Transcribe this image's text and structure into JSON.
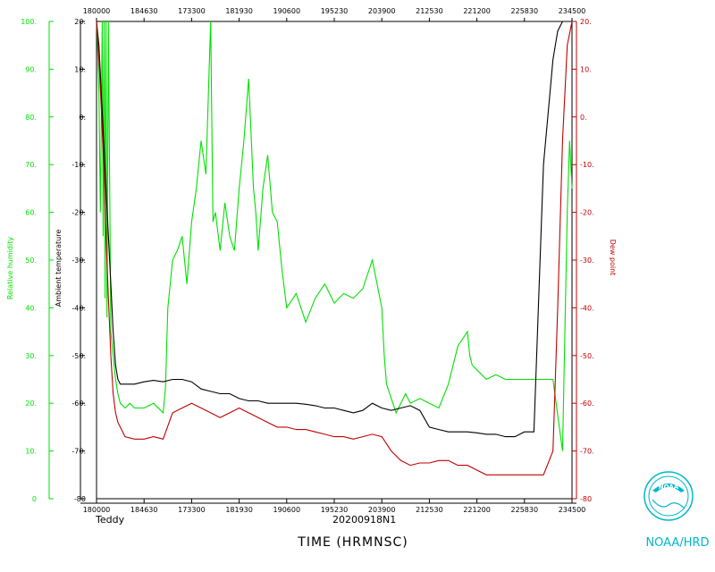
{
  "colors": {
    "rh": "#00e000",
    "temp": "#000000",
    "dew": "#c00000",
    "noaa": "#00b8c8"
  },
  "labels": {
    "storm": "Teddy",
    "flight": "20200918N1",
    "xtitle": "TIME (HRMNSC)",
    "noaa_hrd": "NOAA/HRD",
    "logo_text": "NOAA"
  },
  "chart_data": {
    "type": "line",
    "x_tick_labels": [
      "180000",
      "184630",
      "173300",
      "181930",
      "190600",
      "195230",
      "203900",
      "212530",
      "221200",
      "225830",
      "234500"
    ],
    "axes": {
      "rh": {
        "label": "Relative humidity",
        "ylim": [
          0,
          100
        ],
        "ticks": [
          "0",
          "10.",
          "20.",
          "30.",
          "40.",
          "50.",
          "60.",
          "70.",
          "80.",
          "90.",
          "100."
        ]
      },
      "temp": {
        "label": "Ambient temperature",
        "ylim": [
          -80,
          20
        ],
        "ticks": [
          "-80",
          "-70.",
          "-60.",
          "-50.",
          "-40.",
          "-30.",
          "-20.",
          "-10.",
          "0.",
          "10.",
          "20."
        ]
      },
      "dew": {
        "label": "Dew point",
        "ylim": [
          -80,
          20
        ],
        "ticks": [
          "-80",
          "-70.",
          "-60.",
          "-50.",
          "-40.",
          "-30.",
          "-20.",
          "-10.",
          "0.",
          "10.",
          "20."
        ]
      }
    },
    "x_range": [
      0,
      10
    ],
    "series": [
      {
        "name": "Relative humidity",
        "axis": "rh",
        "color": "#00e000",
        "x": [
          0,
          0.02,
          0.05,
          0.08,
          0.1,
          0.12,
          0.14,
          0.16,
          0.18,
          0.2,
          0.22,
          0.25,
          0.3,
          0.35,
          0.4,
          0.45,
          0.5,
          0.6,
          0.7,
          0.8,
          1.0,
          1.2,
          1.4,
          1.45,
          1.5,
          1.6,
          1.7,
          1.8,
          1.9,
          2.0,
          2.1,
          2.2,
          2.3,
          2.4,
          2.45,
          2.5,
          2.6,
          2.7,
          2.8,
          2.9,
          3.0,
          3.1,
          3.2,
          3.3,
          3.35,
          3.4,
          3.5,
          3.6,
          3.7,
          3.8,
          3.9,
          4.0,
          4.2,
          4.4,
          4.6,
          4.8,
          5.0,
          5.2,
          5.4,
          5.6,
          5.8,
          6.0,
          6.05,
          6.1,
          6.2,
          6.3,
          6.4,
          6.5,
          6.6,
          6.8,
          7.0,
          7.2,
          7.4,
          7.6,
          7.8,
          7.85,
          7.9,
          8.0,
          8.2,
          8.4,
          8.6,
          8.8,
          9.0,
          9.2,
          9.4,
          9.6,
          9.8,
          9.9,
          9.95,
          10.0
        ],
        "y": [
          100,
          95,
          85,
          60,
          78,
          100,
          55,
          100,
          42,
          100,
          38,
          100,
          35,
          30,
          25,
          22,
          20,
          19,
          20,
          19,
          19,
          20,
          18,
          23,
          40,
          50,
          52,
          55,
          45,
          58,
          65,
          75,
          68,
          100,
          58,
          60,
          52,
          62,
          55,
          52,
          65,
          75,
          88,
          65,
          60,
          52,
          65,
          72,
          60,
          58,
          48,
          40,
          43,
          37,
          42,
          45,
          41,
          43,
          42,
          44,
          50,
          40,
          30,
          24,
          21,
          18,
          20,
          22,
          20,
          21,
          20,
          19,
          24,
          32,
          35,
          30,
          28,
          27,
          25,
          26,
          25,
          25,
          25,
          25,
          25,
          25,
          10,
          60,
          75,
          65
        ]
      },
      {
        "name": "Ambient temperature",
        "axis": "temp",
        "color": "#000000",
        "x": [
          0,
          0.05,
          0.1,
          0.15,
          0.2,
          0.25,
          0.3,
          0.35,
          0.4,
          0.45,
          0.5,
          0.6,
          0.8,
          1.0,
          1.2,
          1.4,
          1.6,
          1.8,
          2.0,
          2.2,
          2.4,
          2.6,
          2.8,
          3.0,
          3.2,
          3.4,
          3.6,
          3.8,
          4.0,
          4.2,
          4.4,
          4.6,
          4.8,
          5.0,
          5.2,
          5.4,
          5.6,
          5.8,
          6.0,
          6.2,
          6.4,
          6.6,
          6.8,
          7.0,
          7.2,
          7.4,
          7.6,
          7.8,
          8.0,
          8.2,
          8.4,
          8.6,
          8.8,
          9.0,
          9.2,
          9.4,
          9.6,
          9.7,
          9.8,
          9.9,
          10.0
        ],
        "y": [
          20,
          15,
          5,
          -5,
          -15,
          -25,
          -35,
          -45,
          -52,
          -55,
          -56,
          -56,
          -56,
          -55.5,
          -55.2,
          -55.5,
          -55,
          -55,
          -55.5,
          -57,
          -57.5,
          -58,
          -58,
          -59,
          -59.5,
          -59.5,
          -60,
          -60,
          -60,
          -60,
          -60.2,
          -60.5,
          -61,
          -61,
          -61.5,
          -62,
          -61.5,
          -60,
          -61,
          -61.5,
          -61,
          -60.5,
          -61.5,
          -65,
          -65.5,
          -66,
          -66,
          -66,
          -66.2,
          -66.5,
          -66.5,
          -67,
          -67,
          -66,
          -66,
          -10,
          12,
          18,
          20,
          20,
          20
        ]
      },
      {
        "name": "Dew point",
        "axis": "dew",
        "color": "#c00000",
        "x": [
          0,
          0.05,
          0.1,
          0.15,
          0.2,
          0.25,
          0.3,
          0.35,
          0.4,
          0.45,
          0.5,
          0.6,
          0.8,
          1.0,
          1.2,
          1.4,
          1.6,
          1.8,
          2.0,
          2.2,
          2.4,
          2.6,
          2.8,
          3.0,
          3.2,
          3.4,
          3.6,
          3.8,
          4.0,
          4.2,
          4.4,
          4.6,
          4.8,
          5.0,
          5.2,
          5.4,
          5.6,
          5.8,
          6.0,
          6.2,
          6.4,
          6.6,
          6.8,
          7.0,
          7.2,
          7.4,
          7.6,
          7.8,
          8.0,
          8.2,
          8.4,
          8.6,
          8.8,
          9.0,
          9.2,
          9.4,
          9.6,
          9.7,
          9.8,
          9.9,
          10.0
        ],
        "y": [
          20,
          12,
          2,
          -10,
          -25,
          -38,
          -50,
          -58,
          -62,
          -64,
          -65,
          -67,
          -67.5,
          -67.5,
          -67,
          -67.5,
          -62,
          -61,
          -60,
          -61,
          -62,
          -63,
          -62,
          -61,
          -62,
          -63,
          -64,
          -65,
          -65,
          -65.5,
          -65.5,
          -66,
          -66.5,
          -67,
          -67,
          -67.5,
          -67,
          -66.5,
          -67,
          -70,
          -72,
          -73,
          -72.5,
          -72.5,
          -72,
          -72,
          -73,
          -73,
          -74,
          -75,
          -75,
          -75,
          -75,
          -75,
          -75,
          -75,
          -70,
          -40,
          -5,
          15,
          20
        ]
      }
    ]
  }
}
